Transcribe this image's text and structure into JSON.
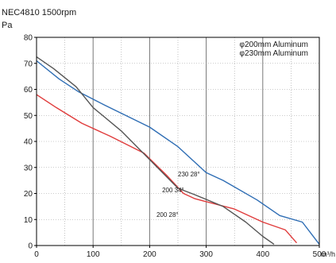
{
  "chart_data": {
    "type": "line",
    "title": "NEC4810 1500rpm",
    "ylabel": "Pa",
    "xlabel": "m³/h",
    "xlim": [
      0,
      500
    ],
    "ylim": [
      0,
      80
    ],
    "xticks": [
      0,
      100,
      200,
      300,
      400,
      500
    ],
    "yticks": [
      0,
      10,
      20,
      30,
      40,
      50,
      60,
      70,
      80
    ],
    "grid": true,
    "legend": [
      "φ200mm Aluminum",
      "φ230mm Aluminum"
    ],
    "legend_position": "top-right",
    "series": [
      {
        "label": "230 28°",
        "color": "#2e6db4",
        "points": [
          [
            0,
            71
          ],
          [
            40,
            64
          ],
          [
            75,
            59
          ],
          [
            120,
            54
          ],
          [
            200,
            45.5
          ],
          [
            250,
            38
          ],
          [
            300,
            28
          ],
          [
            330,
            25
          ],
          [
            390,
            17.5
          ],
          [
            430,
            11.5
          ],
          [
            470,
            9
          ],
          [
            500,
            0.5
          ]
        ]
      },
      {
        "label": "200 34°",
        "color": "#e03c3c",
        "points": [
          [
            0,
            58
          ],
          [
            35,
            53
          ],
          [
            80,
            47
          ],
          [
            130,
            42
          ],
          [
            190,
            35.5
          ],
          [
            230,
            27
          ],
          [
            260,
            20
          ],
          [
            280,
            18
          ],
          [
            350,
            14
          ],
          [
            400,
            9
          ],
          [
            440,
            6
          ],
          [
            460,
            1
          ]
        ]
      },
      {
        "label": "200 28°",
        "color": "#555555",
        "points": [
          [
            0,
            72.5
          ],
          [
            30,
            68
          ],
          [
            70,
            61
          ],
          [
            100,
            53
          ],
          [
            150,
            44
          ],
          [
            200,
            33
          ],
          [
            250,
            22
          ],
          [
            280,
            19.5
          ],
          [
            330,
            15
          ],
          [
            370,
            9
          ],
          [
            400,
            3.5
          ],
          [
            420,
            0.5
          ]
        ]
      }
    ]
  }
}
